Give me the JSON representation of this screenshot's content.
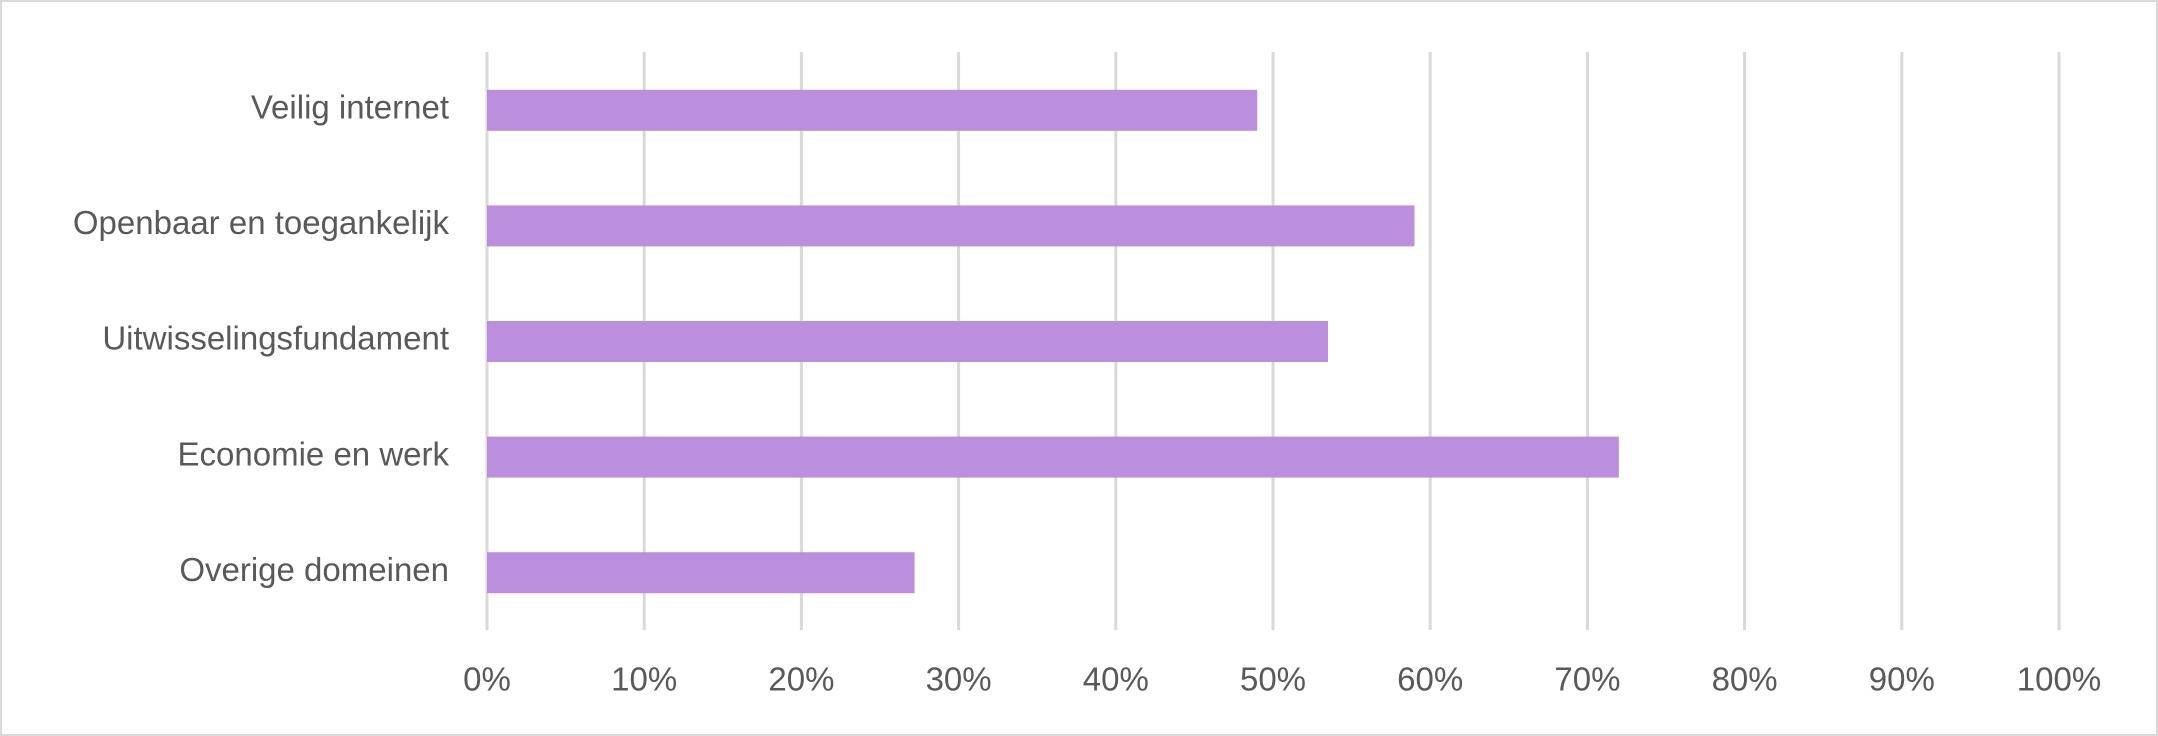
{
  "chart_data": {
    "type": "bar",
    "orientation": "horizontal",
    "categories": [
      "Veilig internet",
      "Openbaar en toegankelijk",
      "Uitwisselingsfundament",
      "Economie en werk",
      "Overige domeinen"
    ],
    "values": [
      49,
      59,
      53.5,
      72,
      27.2
    ],
    "color": "#bb8fdd",
    "xlim": [
      0,
      100
    ],
    "xticks": [
      {
        "value": 0,
        "label": "0%"
      },
      {
        "value": 10,
        "label": "10%"
      },
      {
        "value": 20,
        "label": "20%"
      },
      {
        "value": 30,
        "label": "30%"
      },
      {
        "value": 40,
        "label": "40%"
      },
      {
        "value": 50,
        "label": "50%"
      },
      {
        "value": 60,
        "label": "60%"
      },
      {
        "value": 70,
        "label": "70%"
      },
      {
        "value": 80,
        "label": "80%"
      },
      {
        "value": 90,
        "label": "90%"
      },
      {
        "value": 100,
        "label": "100%"
      }
    ],
    "grid": true
  }
}
